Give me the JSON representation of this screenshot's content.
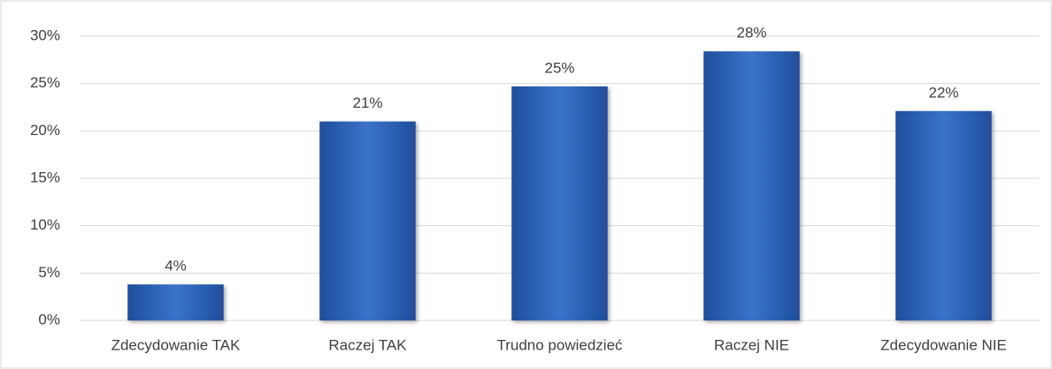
{
  "chart_data": {
    "type": "bar",
    "categories": [
      "Zdecydowanie TAK",
      "Raczej TAK",
      "Trudno powiedzieć",
      "Raczej NIE",
      "Zdecydowanie NIE"
    ],
    "values": [
      3.8,
      21.0,
      24.7,
      28.4,
      22.1
    ],
    "value_labels": [
      "4%",
      "21%",
      "25%",
      "28%",
      "22%"
    ],
    "color": "#2e64b8",
    "ylim": [
      0,
      30
    ],
    "yticks": [
      {
        "value": 0,
        "label": "0%"
      },
      {
        "value": 5,
        "label": "5%"
      },
      {
        "value": 10,
        "label": "10%"
      },
      {
        "value": 15,
        "label": "15%"
      },
      {
        "value": 20,
        "label": "20%"
      },
      {
        "value": 25,
        "label": "25%"
      },
      {
        "value": 30,
        "label": "30%"
      }
    ],
    "grid": true
  }
}
